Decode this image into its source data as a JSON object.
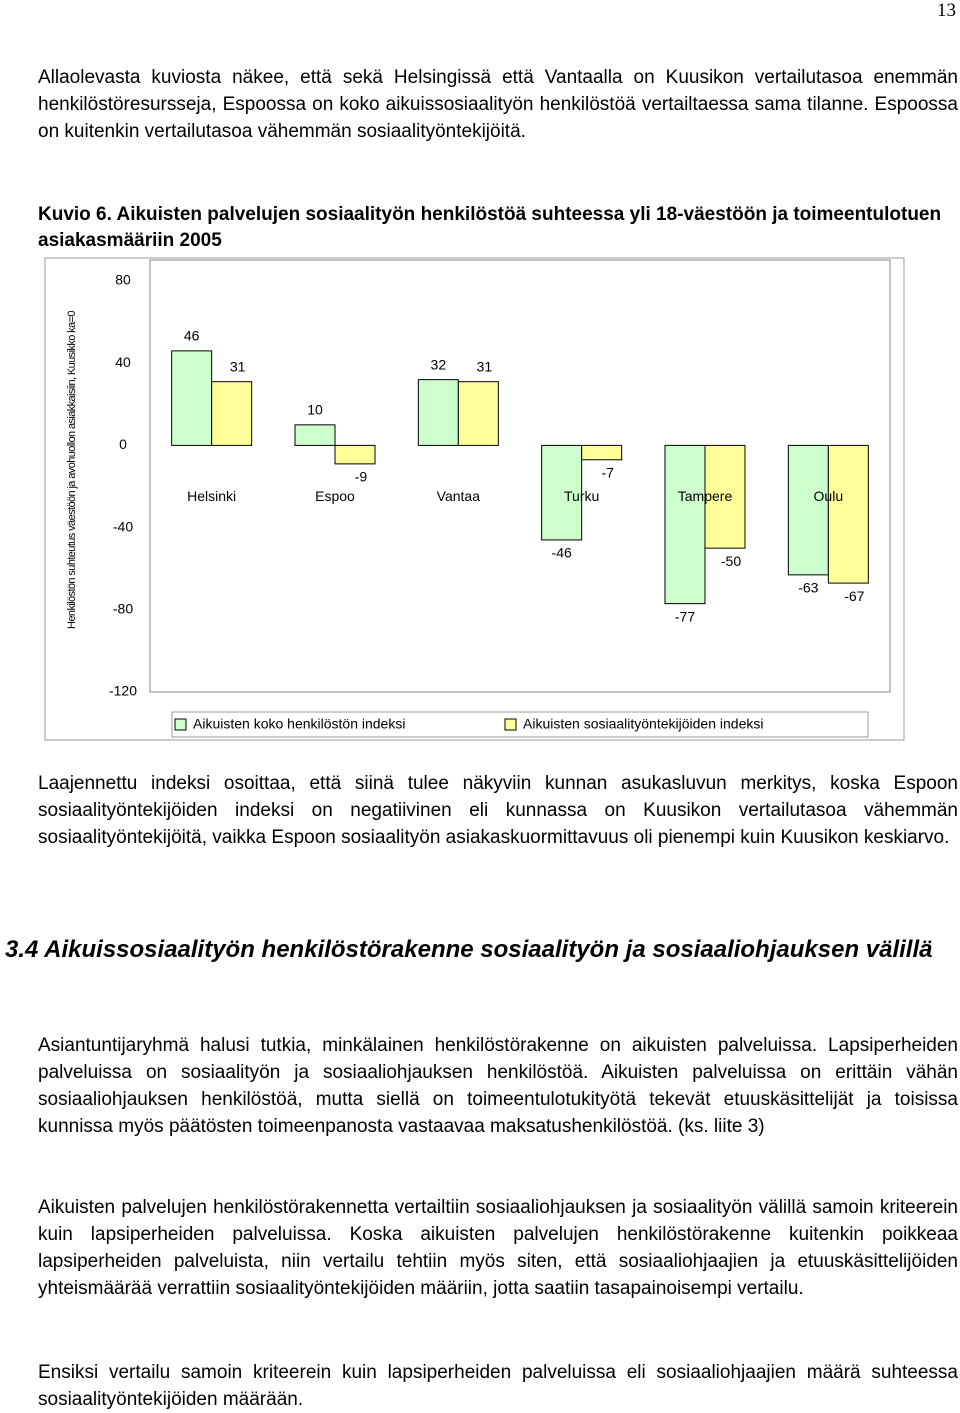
{
  "page_number": "13",
  "paragraphs": [
    "Allaolevasta kuviosta näkee, että sekä Helsingissä että Vantaalla on Kuusikon vertailutasoa enemmän henkilöstöresursseja, Espoossa on koko aikuissosiaalityön henkilöstöä vertailtaessa sama tilanne. Espoossa on kuitenkin vertailutasoa vähemmän sosiaalityöntekijöitä.",
    "Laajennettu indeksi osoittaa, että siinä tulee näkyviin kunnan asukasluvun merkitys, koska Espoon sosiaalityöntekijöiden indeksi on negatiivinen eli kunnassa on Kuusikon vertailutasoa vähemmän sosiaalityöntekijöitä, vaikka Espoon sosiaalityön asiakaskuormittavuus oli pienempi kuin Kuusikon keskiarvo.",
    "Asiantuntijaryhmä halusi tutkia, minkälainen henkilöstörakenne on aikuisten palveluissa. Lapsiperheiden palveluissa on sosiaalityön ja sosiaaliohjauksen henkilöstöä. Aikuisten palveluissa on erittäin vähän sosiaaliohjauksen henkilöstöä, mutta siellä on toimeentulotukityötä tekevät etuuskäsittelijät ja toisissa kunnissa myös päätösten toimeenpanosta vastaavaa maksatushenkilöstöä. (ks. liite 3)",
    "Aikuisten palvelujen henkilöstörakennetta vertailtiin sosiaaliohjauksen ja sosiaalityön välillä samoin kriteerein kuin lapsiperheiden palveluissa. Koska aikuisten palvelujen henkilöstörakenne kuitenkin poikkeaa lapsiperheiden palveluista, niin vertailu tehtiin myös siten, että sosiaaliohjaajien ja etuuskäsittelijöiden yhteismäärää verrattiin sosiaalityöntekijöiden määriin, jotta saatiin tasapainoisempi vertailu.",
    "Ensiksi vertailu samoin kriteerein kuin lapsiperheiden palveluissa eli sosiaaliohjaajien määrä suhteessa sosiaalityöntekijöiden määrään."
  ],
  "figure_caption": "Kuvio 6. Aikuisten palvelujen sosiaalityön henkilöstöä suhteessa yli 18-väestöön ja toimeentulotuen asiakasmääriin 2005",
  "section_heading": "3.4 Aikuissosiaalityön henkilöstörakenne sosiaalityön ja sosiaaliohjauksen välillä",
  "chart_data": {
    "type": "bar",
    "y_label": "Henkilöstön suhteutus väestöön ja avohuollon asiakkaisiin, Kuusikko ka=0",
    "categories": [
      "Helsinki",
      "Espoo",
      "Vantaa",
      "Turku",
      "Tampere",
      "Oulu"
    ],
    "series": [
      {
        "name": "Aikuisten koko henkilöstön indeksi",
        "color": "#ccffcc",
        "values": [
          46,
          10,
          32,
          -46,
          -77,
          -63
        ]
      },
      {
        "name": "Aikuisten sosiaalityöntekijöiden indeksi",
        "color": "#ffff99",
        "values": [
          31,
          -9,
          31,
          -7,
          -50,
          -67
        ]
      }
    ],
    "ylim": [
      -120,
      80
    ],
    "yticks": [
      80,
      40,
      0,
      -40,
      -80,
      -120
    ],
    "grid": false,
    "legend": "bottom"
  }
}
